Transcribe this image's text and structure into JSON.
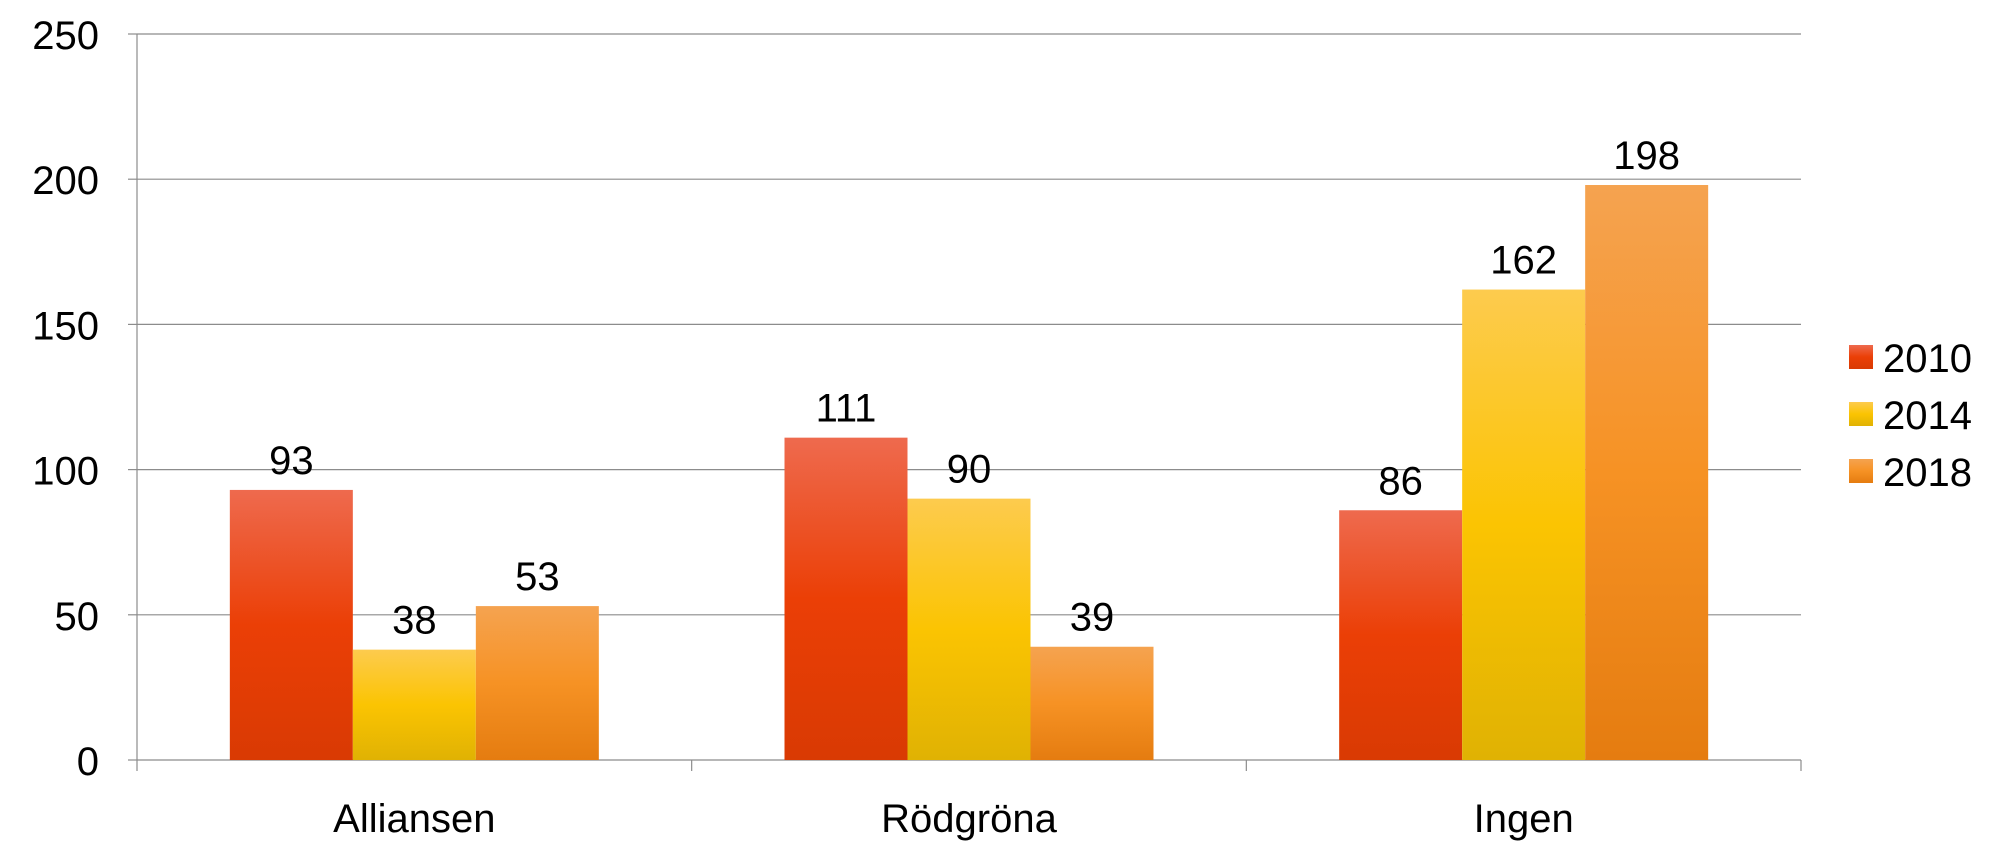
{
  "chart_data": {
    "type": "bar",
    "title": "",
    "xlabel": "",
    "ylabel": "",
    "categories": [
      "Alliansen",
      "Rödgröna",
      "Ingen"
    ],
    "series": [
      {
        "name": "2010",
        "values": [
          93,
          111,
          86
        ],
        "color_top": "#EE6A4E",
        "color_mid": "#EB3F06",
        "color_bottom": "#D93A03"
      },
      {
        "name": "2014",
        "values": [
          38,
          90,
          162
        ],
        "color_top": "#FDCB4E",
        "color_mid": "#FBC402",
        "color_bottom": "#E0B203"
      },
      {
        "name": "2018",
        "values": [
          53,
          39,
          198
        ],
        "color_top": "#F5A350",
        "color_mid": "#F69224",
        "color_bottom": "#E57C10"
      }
    ],
    "ylim": [
      0,
      250
    ],
    "yticks": [
      0,
      50,
      100,
      150,
      200,
      250
    ],
    "grid": true,
    "legend": "right",
    "data_labels": true
  }
}
